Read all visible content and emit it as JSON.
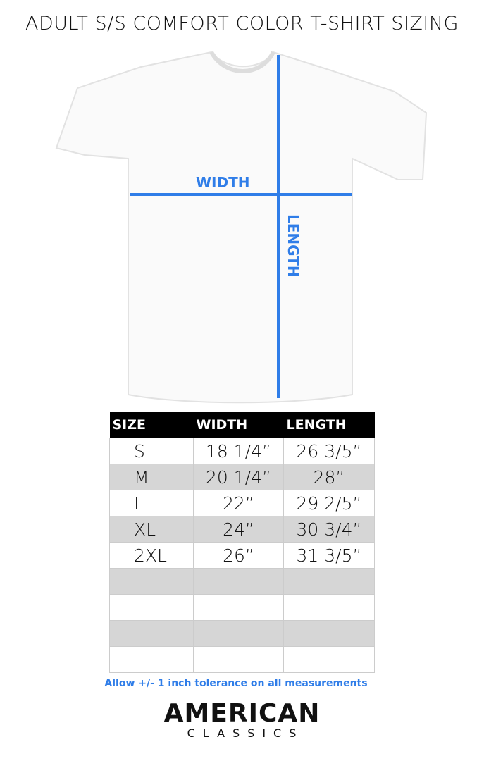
{
  "title": "ADULT S/S COMFORT COLOR T-SHIRT SIZING",
  "diagram": {
    "width_label": "WIDTH",
    "length_label": "LENGTH",
    "accent": "#2f7de8"
  },
  "table": {
    "headers": [
      "SIZE",
      "WIDTH",
      "LENGTH"
    ],
    "rows": [
      [
        "S",
        "18 1/4”",
        "26 3/5”"
      ],
      [
        "M",
        "20 1/4”",
        "28”"
      ],
      [
        "L",
        "22”",
        "29 2/5”"
      ],
      [
        "XL",
        "24”",
        "30 3/4”"
      ],
      [
        "2XL",
        "26”",
        "31 3/5”"
      ],
      [
        "",
        "",
        ""
      ],
      [
        "",
        "",
        ""
      ],
      [
        "",
        "",
        ""
      ],
      [
        "",
        "",
        ""
      ]
    ]
  },
  "note": "Allow +/- 1 inch tolerance on all measurements",
  "logo": {
    "line1": "AMERICAN",
    "line2": "CLASSICS"
  }
}
